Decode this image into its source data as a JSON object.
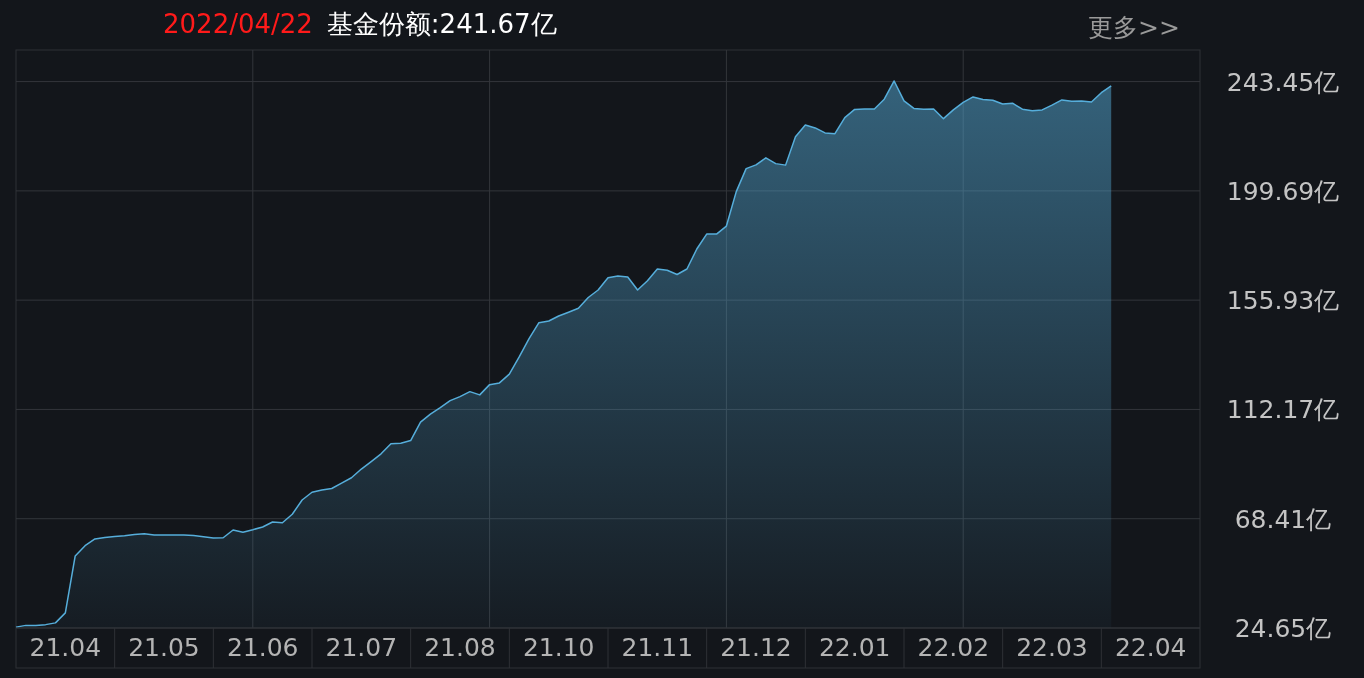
{
  "chart_data": {
    "type": "area",
    "title": "基金份额:241.67亿",
    "subtitle": "2022/04/22",
    "annotations": [
      "更多>>"
    ],
    "categories": [
      null,
      null,
      null,
      null,
      null,
      "21.04",
      null,
      null,
      null,
      null,
      null,
      null,
      null,
      null,
      null,
      "21.05",
      null,
      null,
      null,
      null,
      null,
      null,
      null,
      null,
      null,
      "21.06",
      null,
      null,
      null,
      null,
      null,
      null,
      null,
      null,
      null,
      "21.07",
      null,
      null,
      null,
      null,
      null,
      null,
      null,
      null,
      null,
      "21.08",
      null,
      null,
      null,
      null,
      null,
      null,
      null,
      null,
      null,
      "21.10",
      null,
      null,
      null,
      null,
      null,
      null,
      null,
      null,
      null,
      "21.11",
      null,
      null,
      null,
      null,
      null,
      null,
      null,
      null,
      null,
      "21.12",
      null,
      null,
      null,
      null,
      null,
      null,
      null,
      null,
      null,
      "22.01",
      null,
      null,
      null,
      null,
      null,
      null,
      null,
      null,
      null,
      "22.02",
      null,
      null,
      null,
      null,
      null,
      null,
      null,
      null,
      null,
      "22.03",
      null,
      null,
      null,
      null,
      null,
      null,
      null,
      null,
      null,
      "22.04",
      null,
      null,
      null,
      null,
      null
    ],
    "ylim": [
      24.65,
      256.1
    ],
    "yticks": [
      {
        "value": 24.65,
        "label": "24.65亿"
      },
      {
        "value": 68.41,
        "label": "68.41亿"
      },
      {
        "value": 112.17,
        "label": "112.17亿"
      },
      {
        "value": 155.93,
        "label": "155.93亿"
      },
      {
        "value": 199.69,
        "label": "199.69亿"
      },
      {
        "value": 243.45,
        "label": "243.45亿"
      }
    ],
    "grid": true,
    "series": [
      {
        "color": "#56aedb",
        "values": [
          25.0,
          25.7,
          25.7,
          26.0,
          26.7,
          30.7,
          53.5,
          57.6,
          60.3,
          60.9,
          61.3,
          61.6,
          62.1,
          62.4,
          61.9,
          61.9,
          61.9,
          61.9,
          61.7,
          61.2,
          60.7,
          60.8,
          63.9,
          63.0,
          64.0,
          65.1,
          67.1,
          66.8,
          70.2,
          75.9,
          79.0,
          79.9,
          80.5,
          82.7,
          84.8,
          88.3,
          91.3,
          94.4,
          98.4,
          98.6,
          99.7,
          107.1,
          110.3,
          112.9,
          115.7,
          117.3,
          119.3,
          118.0,
          122.1,
          122.8,
          126.3,
          133.2,
          140.5,
          146.9,
          147.6,
          149.6,
          151.1,
          152.7,
          157.0,
          160.0,
          164.9,
          165.6,
          165.2,
          160.0,
          163.7,
          168.4,
          167.9,
          166.2,
          168.4,
          176.4,
          182.4,
          182.4,
          185.6,
          199.4,
          208.6,
          210.1,
          212.9,
          210.6,
          210.0,
          221.4,
          226.1,
          224.9,
          222.9,
          222.6,
          229.0,
          232.3,
          232.5,
          232.5,
          236.4,
          243.7,
          235.7,
          232.7,
          232.4,
          232.5,
          228.6,
          232.1,
          235.1,
          237.3,
          236.3,
          236.0,
          234.5,
          234.8,
          232.4,
          231.8,
          232.1,
          234.0,
          236.1,
          235.6,
          235.7,
          235.3,
          239.0,
          241.7,
          null,
          null,
          null,
          null,
          null,
          null,
          null,
          null,
          null
        ]
      }
    ]
  }
}
